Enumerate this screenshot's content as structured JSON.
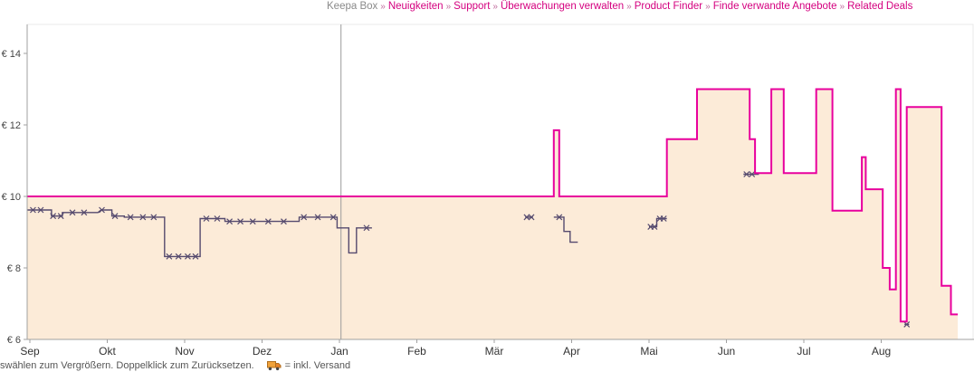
{
  "nav": {
    "separator": "»",
    "items": [
      {
        "label": "Keepa Box",
        "muted": true
      },
      {
        "label": "Neuigkeiten"
      },
      {
        "label": "Support"
      },
      {
        "label": "Überwachungen verwalten"
      },
      {
        "label": "Product Finder"
      },
      {
        "label": "Finde verwandte Angebote"
      },
      {
        "label": "Related Deals"
      }
    ]
  },
  "footer": {
    "hint": "swählen zum Vergrößern. Doppelklick zum Zurücksetzen.",
    "legend_equals": "= inkl. Versand",
    "truck_icon": "shipping-truck-icon"
  },
  "chart_data": {
    "type": "line",
    "title": "",
    "currency_prefix": "€ ",
    "x_axis": {
      "labels": [
        "Sep",
        "Okt",
        "Nov",
        "Dez",
        "Jan",
        "Feb",
        "Mär",
        "Apr",
        "Mai",
        "Jun",
        "Jul",
        "Aug"
      ]
    },
    "y_axis": {
      "ticks": [
        6,
        8,
        10,
        12,
        14
      ],
      "tick_prefix": "€ ",
      "min": 6,
      "max": 14.8
    },
    "grid": false,
    "legend_position": "none",
    "year_divider_month": 4.02,
    "colors": {
      "buybox": "#e8009d",
      "buybox_fill": "#fcebd8",
      "new": "#554a6e",
      "axis": "#a0a0a0",
      "divider": "#9b9b9b",
      "label": "#444444"
    },
    "series": [
      {
        "name": "buybox-price",
        "style": "step-area",
        "color": "#e8009d",
        "fill": "#fcebd8",
        "points": [
          [
            -0.035,
            10
          ],
          [
            6.77,
            10
          ],
          [
            6.77,
            11.85
          ],
          [
            6.84,
            11.85
          ],
          [
            6.84,
            10
          ],
          [
            8.23,
            10
          ],
          [
            8.23,
            11.6
          ],
          [
            8.62,
            11.6
          ],
          [
            8.62,
            13
          ],
          [
            9.3,
            13
          ],
          [
            9.3,
            11.6
          ],
          [
            9.37,
            11.6
          ],
          [
            9.37,
            10.65
          ],
          [
            9.58,
            10.65
          ],
          [
            9.58,
            13
          ],
          [
            9.74,
            13
          ],
          [
            9.74,
            10.65
          ],
          [
            10.16,
            10.65
          ],
          [
            10.16,
            13
          ],
          [
            10.37,
            13
          ],
          [
            10.37,
            9.6
          ],
          [
            10.75,
            9.6
          ],
          [
            10.75,
            11.1
          ],
          [
            10.8,
            11.1
          ],
          [
            10.8,
            10.2
          ],
          [
            11.02,
            10.2
          ],
          [
            11.02,
            8
          ],
          [
            11.11,
            8
          ],
          [
            11.11,
            7.4
          ],
          [
            11.19,
            7.4
          ],
          [
            11.19,
            13
          ],
          [
            11.25,
            13
          ],
          [
            11.25,
            6.5
          ],
          [
            11.33,
            6.5
          ],
          [
            11.33,
            12.5
          ],
          [
            11.78,
            12.5
          ],
          [
            11.78,
            7.5
          ],
          [
            11.9,
            7.5
          ],
          [
            11.9,
            6.7
          ],
          [
            11.99,
            6.7
          ]
        ]
      },
      {
        "name": "new-offer-price",
        "style": "step-markers",
        "color": "#554a6e",
        "segments": [
          [
            [
              -0.035,
              9.62
            ],
            [
              0.28,
              9.62
            ],
            [
              0.28,
              9.45
            ],
            [
              0.42,
              9.45
            ],
            [
              0.42,
              9.55
            ],
            [
              0.88,
              9.55
            ],
            [
              0.92,
              9.62
            ],
            [
              1.06,
              9.62
            ],
            [
              1.06,
              9.45
            ],
            [
              1.22,
              9.45
            ],
            [
              1.22,
              9.42
            ],
            [
              1.74,
              9.42
            ],
            [
              1.74,
              8.32
            ],
            [
              2.2,
              8.32
            ],
            [
              2.2,
              9.38
            ],
            [
              2.52,
              9.38
            ],
            [
              2.52,
              9.3
            ],
            [
              3.48,
              9.3
            ],
            [
              3.48,
              9.42
            ],
            [
              3.97,
              9.42
            ],
            [
              3.97,
              9.12
            ],
            [
              4.12,
              9.12
            ],
            [
              4.12,
              8.42
            ],
            [
              4.22,
              8.42
            ],
            [
              4.22,
              9.12
            ],
            [
              4.42,
              9.12
            ]
          ],
          [
            [
              6.4,
              9.42
            ],
            [
              6.5,
              9.42
            ]
          ],
          [
            [
              6.77,
              9.42
            ],
            [
              6.9,
              9.42
            ],
            [
              6.9,
              9.02
            ],
            [
              6.98,
              9.02
            ],
            [
              6.98,
              8.72
            ],
            [
              7.08,
              8.72
            ]
          ],
          [
            [
              8,
              9.15
            ],
            [
              8.1,
              9.15
            ],
            [
              8.1,
              9.38
            ],
            [
              8.23,
              9.38
            ]
          ],
          [
            [
              9.22,
              10.62
            ],
            [
              9.42,
              10.62
            ]
          ],
          [
            [
              11.3,
              6.42
            ],
            [
              11.36,
              6.42
            ]
          ]
        ],
        "markers": [
          [
            0.04,
            9.62
          ],
          [
            0.14,
            9.62
          ],
          [
            0.3,
            9.45
          ],
          [
            0.4,
            9.45
          ],
          [
            0.55,
            9.55
          ],
          [
            0.7,
            9.55
          ],
          [
            0.93,
            9.62
          ],
          [
            1.1,
            9.45
          ],
          [
            1.3,
            9.42
          ],
          [
            1.46,
            9.42
          ],
          [
            1.6,
            9.42
          ],
          [
            1.8,
            8.32
          ],
          [
            1.92,
            8.32
          ],
          [
            2.04,
            8.32
          ],
          [
            2.14,
            8.32
          ],
          [
            2.28,
            9.38
          ],
          [
            2.42,
            9.38
          ],
          [
            2.58,
            9.3
          ],
          [
            2.72,
            9.3
          ],
          [
            2.88,
            9.3
          ],
          [
            3.08,
            9.3
          ],
          [
            3.28,
            9.3
          ],
          [
            3.54,
            9.42
          ],
          [
            3.72,
            9.42
          ],
          [
            3.92,
            9.42
          ],
          [
            4.35,
            9.12
          ],
          [
            6.42,
            9.42
          ],
          [
            6.48,
            9.42
          ],
          [
            6.84,
            9.42
          ],
          [
            8.02,
            9.15
          ],
          [
            8.07,
            9.15
          ],
          [
            8.14,
            9.38
          ],
          [
            8.19,
            9.38
          ],
          [
            9.26,
            10.62
          ],
          [
            9.33,
            10.62
          ],
          [
            11.33,
            6.42
          ]
        ]
      }
    ]
  }
}
